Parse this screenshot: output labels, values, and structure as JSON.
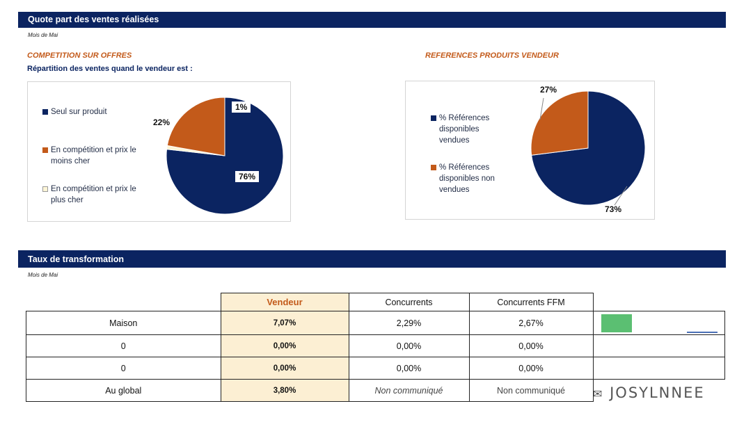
{
  "section1": {
    "title": "Quote part des ventes réalisées",
    "period": "Mois de Mai",
    "left_heading": "COMPETITION SUR OFFRES",
    "left_subheading": "Répartition des ventes quand le vendeur est :",
    "right_heading": "REFERENCES  PRODUITS VENDEUR"
  },
  "section2": {
    "title": "Taux de transformation",
    "period": "Mois de Mai"
  },
  "chart_data": [
    {
      "type": "pie",
      "title": "Répartition des ventes quand le vendeur est :",
      "categories": [
        "Seul sur produit",
        "En compétition et prix le moins cher",
        "En compétition et prix le plus cher"
      ],
      "values": [
        76,
        22,
        1
      ],
      "labels": [
        "76%",
        "22%",
        "1%"
      ],
      "legend_lines": [
        [
          "Seul sur produit"
        ],
        [
          "En compétition et prix le",
          "moins cher"
        ],
        [
          "En compétition et prix le",
          "plus cher"
        ]
      ],
      "colors": [
        "#0b2461",
        "#c35a1a",
        "#fdf5d6"
      ],
      "legend": "left"
    },
    {
      "type": "pie",
      "title": "REFERENCES  PRODUITS VENDEUR",
      "categories": [
        "% Références disponibles vendues",
        "% Références disponibles non vendues"
      ],
      "values": [
        73,
        27
      ],
      "labels": [
        "73%",
        "27%"
      ],
      "legend_lines": [
        [
          "% Références",
          "disponibles",
          "vendues"
        ],
        [
          "% Références",
          "disponibles non",
          "vendues"
        ]
      ],
      "colors": [
        "#0b2461",
        "#c35a1a"
      ],
      "legend": "left"
    },
    {
      "type": "table",
      "columns": [
        "Vendeur",
        "Concurrents",
        "Concurrents FFM"
      ],
      "rows": [
        {
          "label": "Maison",
          "values": [
            "7,07%",
            "2,29%",
            "2,67%"
          ]
        },
        {
          "label": "0",
          "values": [
            "0,00%",
            "0,00%",
            "0,00%"
          ]
        },
        {
          "label": "0",
          "values": [
            "0,00%",
            "0,00%",
            "0,00%"
          ]
        },
        {
          "label": "Au global",
          "values": [
            "3,80%",
            "Non communiqué",
            "Non communiqué"
          ]
        }
      ]
    }
  ],
  "colors": {
    "navy": "#0b2461",
    "orange": "#c35a1a",
    "cream": "#fdf5d6",
    "vendeur_bg": "#fcefd3",
    "green": "#5bbf72"
  },
  "watermark": "JOSYLNNEE"
}
